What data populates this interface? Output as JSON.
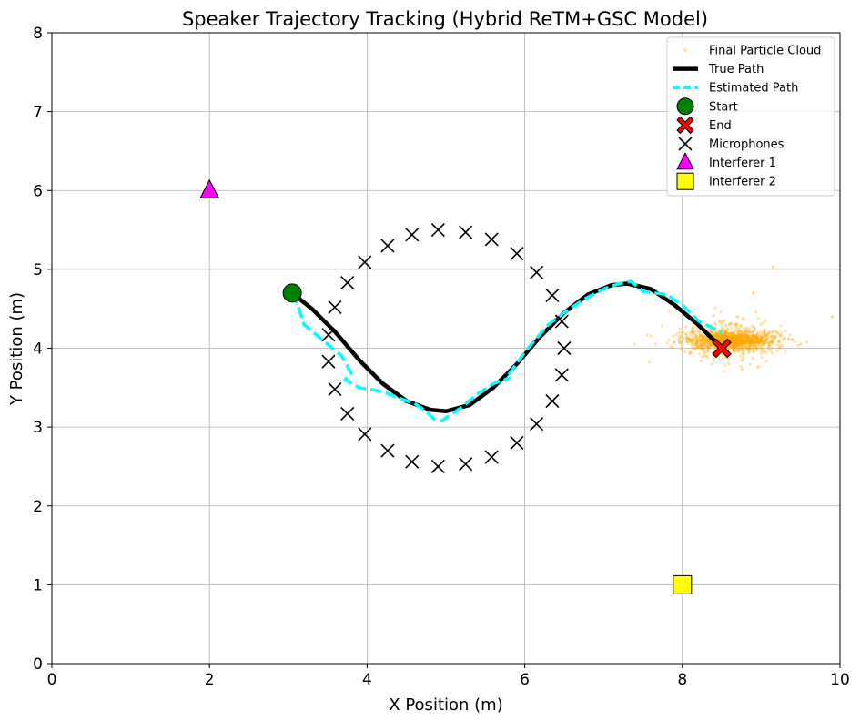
{
  "chart_data": {
    "type": "scatter",
    "title": "Speaker Trajectory Tracking (Hybrid ReTM+GSC Model)",
    "xlabel": "X Position (m)",
    "ylabel": "Y Position (m)",
    "xlim": [
      0,
      10
    ],
    "ylim": [
      0,
      8
    ],
    "xticks": [
      "0",
      "2",
      "4",
      "6",
      "8",
      "10"
    ],
    "yticks": [
      "0",
      "1",
      "2",
      "3",
      "4",
      "5",
      "6",
      "7",
      "8"
    ],
    "grid": true,
    "legend_position": "top-right",
    "series": [
      {
        "name": "Final Particle Cloud",
        "kind": "scatter",
        "color": "#ffa500",
        "center": [
          8.6,
          4.1
        ],
        "spread": [
          0.3,
          0.06
        ],
        "x": [
          8.0,
          8.2,
          8.4,
          8.6,
          8.8,
          9.0,
          9.2,
          8.3,
          8.7,
          9.5,
          9.9,
          8.1,
          8.9,
          9.15
        ],
        "y": [
          4.2,
          4.05,
          4.15,
          4.3,
          4.1,
          4.0,
          4.2,
          3.9,
          4.4,
          4.05,
          4.4,
          3.95,
          4.7,
          5.03
        ]
      },
      {
        "name": "True Path",
        "kind": "line",
        "color": "#000000",
        "x": [
          3.05,
          3.3,
          3.6,
          3.9,
          4.2,
          4.5,
          4.8,
          5.0,
          5.3,
          5.6,
          5.9,
          6.2,
          6.5,
          6.8,
          7.1,
          7.3,
          7.6,
          7.9,
          8.2,
          8.5
        ],
        "y": [
          4.7,
          4.5,
          4.2,
          3.85,
          3.55,
          3.33,
          3.22,
          3.2,
          3.28,
          3.5,
          3.8,
          4.15,
          4.45,
          4.68,
          4.8,
          4.82,
          4.75,
          4.55,
          4.3,
          4.0
        ]
      },
      {
        "name": "Estimated Path",
        "kind": "line",
        "color": "#00ffff",
        "x": [
          3.05,
          3.12,
          3.2,
          3.5,
          3.68,
          3.8,
          3.72,
          3.9,
          4.2,
          4.45,
          4.6,
          4.75,
          4.85,
          4.95,
          5.05,
          5.2,
          5.4,
          5.6,
          5.8,
          5.75,
          6.0,
          6.3,
          6.5,
          6.75,
          7.0,
          7.2,
          7.35,
          7.5,
          7.8,
          8.0,
          8.2,
          8.4,
          8.5
        ],
        "y": [
          4.7,
          4.55,
          4.3,
          4.05,
          3.9,
          3.68,
          3.6,
          3.5,
          3.45,
          3.35,
          3.3,
          3.2,
          3.1,
          3.08,
          3.15,
          3.25,
          3.42,
          3.55,
          3.62,
          3.6,
          3.95,
          4.3,
          4.45,
          4.62,
          4.75,
          4.82,
          4.85,
          4.72,
          4.68,
          4.55,
          4.35,
          4.25,
          4.2
        ]
      },
      {
        "name": "Start",
        "kind": "marker",
        "marker": "circle",
        "color": "#008000",
        "x": [
          3.05
        ],
        "y": [
          4.7
        ]
      },
      {
        "name": "End",
        "kind": "marker",
        "marker": "x-filled",
        "color": "#ff0000",
        "x": [
          8.5
        ],
        "y": [
          4.0
        ]
      },
      {
        "name": "Microphones",
        "kind": "marker",
        "marker": "x",
        "color": "#000000",
        "x": [
          4.9,
          5.25,
          5.58,
          5.9,
          6.15,
          6.35,
          6.47,
          6.5,
          6.47,
          6.35,
          6.15,
          5.9,
          5.58,
          5.25,
          4.9,
          4.57,
          4.26,
          3.97,
          3.75,
          3.59,
          3.51,
          3.51,
          3.59,
          3.75,
          3.97,
          4.26,
          4.57
        ],
        "y": [
          5.5,
          5.47,
          5.38,
          5.2,
          4.96,
          4.67,
          4.34,
          4.0,
          3.66,
          3.33,
          3.04,
          2.8,
          2.62,
          2.53,
          2.5,
          2.56,
          2.7,
          2.91,
          3.17,
          3.48,
          3.83,
          4.17,
          4.52,
          4.83,
          5.09,
          5.3,
          5.44
        ]
      },
      {
        "name": "Interferer 1",
        "kind": "marker",
        "marker": "triangle",
        "color": "#ff00ff",
        "x": [
          2.0
        ],
        "y": [
          6.0
        ]
      },
      {
        "name": "Interferer 2",
        "kind": "marker",
        "marker": "square",
        "color": "#ffff00",
        "x": [
          8.0
        ],
        "y": [
          1.0
        ]
      }
    ]
  }
}
